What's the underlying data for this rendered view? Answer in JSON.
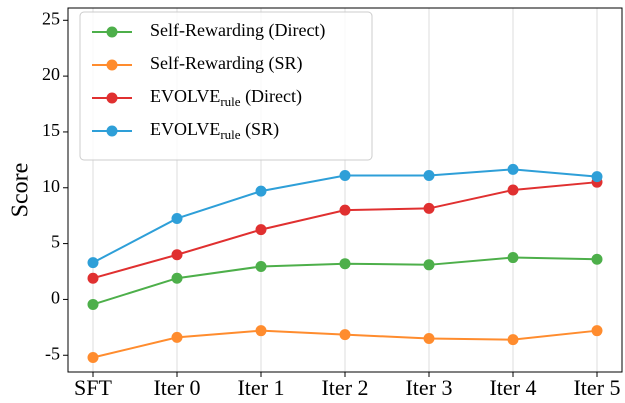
{
  "chart_data": {
    "type": "line",
    "ylabel": "Score",
    "categories": [
      "SFT",
      "Iter 0",
      "Iter 1",
      "Iter 2",
      "Iter 3",
      "Iter 4",
      "Iter 5"
    ],
    "series": [
      {
        "name": "Self-Rewarding (Direct)",
        "color": "#4daf4a",
        "values": [
          -0.45,
          1.9,
          2.95,
          3.2,
          3.1,
          3.75,
          3.6
        ]
      },
      {
        "name": "Self-Rewarding (SR)",
        "color": "#ff8c2e",
        "values": [
          -5.2,
          -3.4,
          -2.8,
          -3.15,
          -3.5,
          -3.6,
          -2.8
        ]
      },
      {
        "name": "EVOLVErule (Direct)",
        "color": "#e03030",
        "values": [
          1.9,
          4.0,
          6.25,
          8.0,
          8.15,
          9.8,
          10.5
        ]
      },
      {
        "name": "EVOLVErule (SR)",
        "color": "#2e9fd8",
        "values": [
          3.3,
          7.25,
          9.7,
          11.1,
          11.1,
          11.65,
          11.0
        ]
      }
    ],
    "ylim": [
      -6.5,
      26.1
    ],
    "yticks": [
      -5,
      0,
      5,
      10,
      15,
      20,
      25
    ],
    "grid": "x",
    "legend": "upper left"
  }
}
